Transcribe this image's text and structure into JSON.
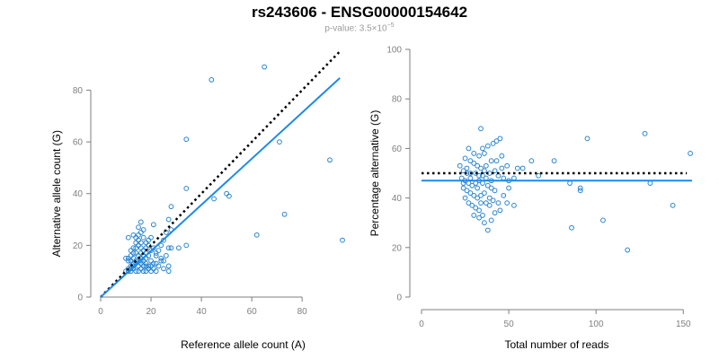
{
  "header": {
    "title": "rs243606 - ENSG00000154642",
    "pvalue_prefix": "p-value: 3.5×10",
    "pvalue_exp": "−5"
  },
  "colors": {
    "points": "#2a85d0",
    "fit": "#1e8ae8",
    "reference": "#000000",
    "axis": "#7f7f7f"
  },
  "chart_data": [
    {
      "type": "scatter",
      "xlabel": "Reference allele count (A)",
      "ylabel": "Alternative allele count (G)",
      "xlim": [
        0,
        96
      ],
      "ylim": [
        0,
        93
      ],
      "xticks": [
        0,
        20,
        40,
        60,
        80
      ],
      "yticks": [
        0,
        20,
        40,
        60,
        80
      ],
      "points": [
        [
          44,
          84
        ],
        [
          65,
          89
        ],
        [
          34,
          61
        ],
        [
          71,
          60
        ],
        [
          91,
          53
        ],
        [
          96,
          22
        ],
        [
          62,
          24
        ],
        [
          73,
          32
        ],
        [
          45,
          38
        ],
        [
          50,
          40
        ],
        [
          51,
          39
        ],
        [
          34,
          42
        ],
        [
          34,
          20
        ],
        [
          31,
          19
        ],
        [
          28,
          35
        ],
        [
          27,
          30
        ],
        [
          28,
          26
        ],
        [
          26,
          25
        ],
        [
          25,
          22
        ],
        [
          21,
          28
        ],
        [
          28,
          19
        ],
        [
          27,
          19
        ],
        [
          24,
          14
        ],
        [
          26,
          16
        ],
        [
          27,
          12
        ],
        [
          27,
          10
        ],
        [
          22,
          17
        ],
        [
          22,
          13
        ],
        [
          20,
          12
        ],
        [
          19,
          11
        ],
        [
          18,
          13
        ],
        [
          17,
          10
        ],
        [
          16,
          29
        ],
        [
          15,
          27
        ],
        [
          16,
          25
        ],
        [
          17,
          26
        ],
        [
          15,
          22
        ],
        [
          14,
          23
        ],
        [
          13,
          24
        ],
        [
          15,
          20
        ],
        [
          16,
          19
        ],
        [
          17,
          18
        ],
        [
          14,
          19
        ],
        [
          13,
          17
        ],
        [
          12,
          16
        ],
        [
          11,
          15
        ],
        [
          10,
          15
        ],
        [
          11,
          14
        ],
        [
          12,
          14
        ],
        [
          13,
          13
        ],
        [
          14,
          13
        ],
        [
          15,
          12
        ],
        [
          16,
          11
        ],
        [
          13,
          11
        ],
        [
          12,
          11
        ],
        [
          11,
          11
        ],
        [
          10,
          10
        ],
        [
          11,
          10
        ],
        [
          12,
          10
        ],
        [
          14,
          10
        ],
        [
          15,
          10
        ],
        [
          17,
          14
        ],
        [
          18,
          15
        ],
        [
          19,
          16
        ],
        [
          20,
          14
        ],
        [
          21,
          13
        ],
        [
          18,
          12
        ],
        [
          16,
          13
        ],
        [
          15,
          16
        ],
        [
          14,
          17
        ],
        [
          16,
          17
        ],
        [
          17,
          16
        ],
        [
          13,
          15
        ],
        [
          11,
          23
        ],
        [
          20,
          23
        ],
        [
          18,
          21
        ],
        [
          19,
          20
        ],
        [
          22,
          16
        ],
        [
          24,
          20
        ],
        [
          23,
          18
        ],
        [
          24,
          15
        ],
        [
          25,
          14
        ],
        [
          21,
          11
        ],
        [
          14,
          14
        ],
        [
          12,
          12
        ],
        [
          13,
          12
        ],
        [
          16,
          14
        ],
        [
          17,
          12
        ],
        [
          15,
          14
        ],
        [
          16,
          15
        ],
        [
          19,
          12
        ],
        [
          18,
          10
        ],
        [
          20,
          10
        ],
        [
          22,
          10
        ],
        [
          23,
          12
        ],
        [
          25,
          11
        ],
        [
          18,
          17
        ],
        [
          20,
          18
        ],
        [
          21,
          19
        ],
        [
          13,
          19
        ],
        [
          12,
          18
        ],
        [
          14,
          21
        ],
        [
          15,
          24
        ],
        [
          18,
          19
        ],
        [
          19,
          22
        ],
        [
          16,
          21
        ],
        [
          17,
          23
        ]
      ],
      "reference_line": {
        "x": [
          0,
          95
        ],
        "y": [
          0,
          95
        ],
        "style": "dotted"
      },
      "fit_line": {
        "x": [
          0,
          95
        ],
        "y": [
          0,
          84.7
        ],
        "style": "solid"
      }
    },
    {
      "type": "scatter",
      "xlabel": "Total number of reads",
      "ylabel": "Percentage alternative (G)",
      "xlim": [
        0,
        155
      ],
      "ylim": [
        0,
        100
      ],
      "xticks": [
        0,
        50,
        100,
        150
      ],
      "yticks": [
        0,
        20,
        40,
        60,
        80,
        100
      ],
      "points": [
        [
          34,
          68
        ],
        [
          41,
          62
        ],
        [
          43,
          63
        ],
        [
          45,
          64
        ],
        [
          38,
          61
        ],
        [
          35,
          60
        ],
        [
          27,
          60
        ],
        [
          30,
          58
        ],
        [
          33,
          57
        ],
        [
          36,
          58
        ],
        [
          25,
          56
        ],
        [
          28,
          55
        ],
        [
          30,
          54
        ],
        [
          32,
          53
        ],
        [
          34,
          52
        ],
        [
          37,
          53
        ],
        [
          40,
          55
        ],
        [
          43,
          55
        ],
        [
          46,
          52
        ],
        [
          49,
          53
        ],
        [
          55,
          52
        ],
        [
          58,
          52
        ],
        [
          63,
          55
        ],
        [
          76,
          55
        ],
        [
          46,
          57
        ],
        [
          22,
          53
        ],
        [
          24,
          51
        ],
        [
          26,
          50
        ],
        [
          28,
          50
        ],
        [
          31,
          50
        ],
        [
          33,
          49
        ],
        [
          35,
          49
        ],
        [
          37,
          48
        ],
        [
          39,
          50
        ],
        [
          42,
          51
        ],
        [
          44,
          49
        ],
        [
          47,
          48
        ],
        [
          50,
          47
        ],
        [
          53,
          48
        ],
        [
          23,
          48
        ],
        [
          25,
          47
        ],
        [
          27,
          46
        ],
        [
          29,
          45
        ],
        [
          31,
          46
        ],
        [
          33,
          47
        ],
        [
          35,
          46
        ],
        [
          38,
          45
        ],
        [
          40,
          44
        ],
        [
          42,
          43
        ],
        [
          24,
          44
        ],
        [
          26,
          43
        ],
        [
          28,
          42
        ],
        [
          30,
          41
        ],
        [
          32,
          40
        ],
        [
          34,
          41
        ],
        [
          36,
          42
        ],
        [
          39,
          40
        ],
        [
          41,
          39
        ],
        [
          44,
          38
        ],
        [
          47,
          41
        ],
        [
          49,
          38
        ],
        [
          53,
          37
        ],
        [
          25,
          40
        ],
        [
          27,
          38
        ],
        [
          29,
          37
        ],
        [
          31,
          36
        ],
        [
          33,
          35
        ],
        [
          35,
          33
        ],
        [
          37,
          38
        ],
        [
          39,
          37
        ],
        [
          42,
          34
        ],
        [
          30,
          33
        ],
        [
          33,
          32
        ],
        [
          36,
          30
        ],
        [
          40,
          31
        ],
        [
          38,
          27
        ],
        [
          86,
          28
        ],
        [
          91,
          44
        ],
        [
          91,
          43
        ],
        [
          85,
          46
        ],
        [
          104,
          31
        ],
        [
          118,
          19
        ],
        [
          128,
          66
        ],
        [
          131,
          46
        ],
        [
          144,
          37
        ],
        [
          154,
          58
        ],
        [
          95,
          64
        ],
        [
          67,
          49
        ],
        [
          50,
          44
        ],
        [
          45,
          35
        ],
        [
          34,
          38
        ],
        [
          26,
          52
        ],
        [
          24,
          46
        ],
        [
          28,
          48
        ],
        [
          32,
          44
        ],
        [
          36,
          51
        ],
        [
          40,
          47
        ]
      ],
      "reference_line": {
        "x": [
          0,
          152
        ],
        "y": [
          50,
          50
        ],
        "style": "dotted"
      },
      "fit_line": {
        "x": [
          0,
          155
        ],
        "y": [
          47,
          47
        ],
        "style": "solid"
      }
    }
  ]
}
